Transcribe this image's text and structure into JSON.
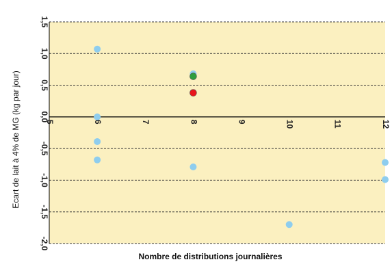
{
  "chart_data": {
    "type": "scatter",
    "title": "",
    "xlabel": "Nombre de distributions journalières",
    "ylabel": "Ecart de lait  à 4% de MG (kg par jour)",
    "xlim": [
      5,
      12
    ],
    "ylim": [
      -2.0,
      1.5
    ],
    "x_ticks": [
      5,
      6,
      7,
      8,
      9,
      10,
      11,
      12
    ],
    "y_ticks": [
      1.5,
      1.0,
      0.5,
      0.0,
      -0.5,
      -1.0,
      -1.5,
      -2.0
    ],
    "x_tick_labels": [
      "5",
      "6",
      "7",
      "8",
      "9",
      "10",
      "11",
      "12"
    ],
    "y_tick_labels": [
      "1,5",
      "1,0",
      "0,5",
      "0,0",
      "-0,5",
      "-1,0",
      "-1,5",
      "-2,0"
    ],
    "grid": "horizontal dashed",
    "plot_background": "#fbf0c0",
    "series": [
      {
        "color": "#8ecdee",
        "points": [
          {
            "x": 6,
            "y": 1.07
          },
          {
            "x": 6,
            "y": 0.0
          },
          {
            "x": 6,
            "y": -0.39
          },
          {
            "x": 6,
            "y": -0.68
          },
          {
            "x": 8,
            "y": 0.68
          },
          {
            "x": 8,
            "y": -0.79
          },
          {
            "x": 10,
            "y": -1.7
          },
          {
            "x": 12,
            "y": -0.72
          },
          {
            "x": 12,
            "y": -0.99
          }
        ]
      },
      {
        "color": "#2e9e3e",
        "points": [
          {
            "x": 8,
            "y": 0.64
          }
        ]
      },
      {
        "color": "#e8141b",
        "points": [
          {
            "x": 8,
            "y": 0.38
          }
        ]
      }
    ]
  }
}
